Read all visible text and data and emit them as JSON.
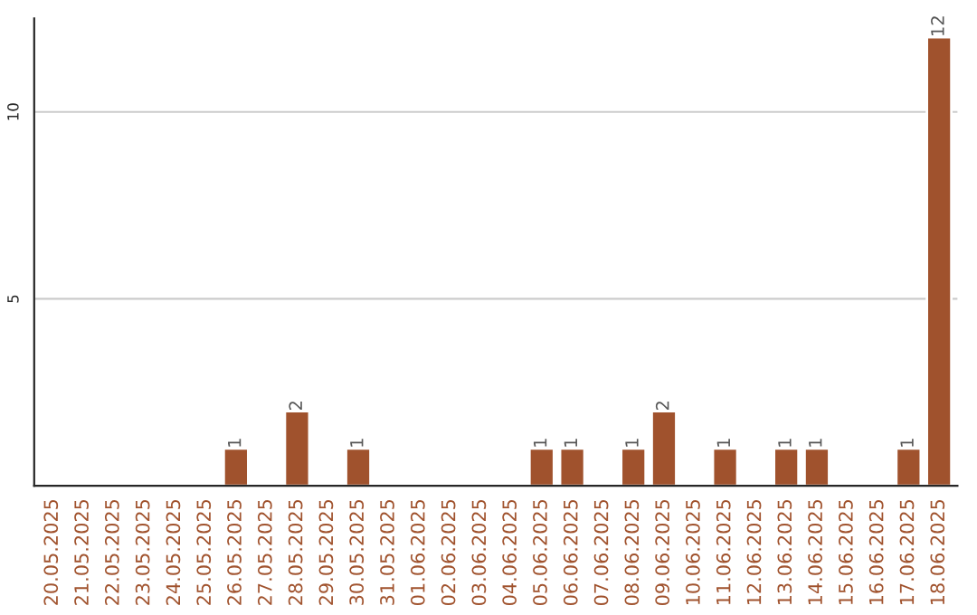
{
  "chart_data": {
    "type": "bar",
    "categories": [
      "20.05.2025",
      "21.05.2025",
      "22.05.2025",
      "23.05.2025",
      "24.05.2025",
      "25.05.2025",
      "26.05.2025",
      "27.05.2025",
      "28.05.2025",
      "29.05.2025",
      "30.05.2025",
      "31.05.2025",
      "01.06.2025",
      "02.06.2025",
      "03.06.2025",
      "04.06.2025",
      "05.06.2025",
      "06.06.2025",
      "07.06.2025",
      "08.06.2025",
      "09.06.2025",
      "10.06.2025",
      "11.06.2025",
      "12.06.2025",
      "13.06.2025",
      "14.06.2025",
      "15.06.2025",
      "16.06.2025",
      "17.06.2025",
      "18.06.2025"
    ],
    "values": [
      0,
      0,
      0,
      0,
      0,
      0,
      1,
      0,
      2,
      0,
      1,
      0,
      0,
      0,
      0,
      0,
      1,
      1,
      0,
      1,
      2,
      0,
      1,
      0,
      1,
      1,
      0,
      0,
      1,
      12
    ],
    "value_labels": [
      null,
      null,
      null,
      null,
      null,
      null,
      "1",
      null,
      "2",
      null,
      "1",
      null,
      null,
      null,
      null,
      null,
      "1",
      "1",
      null,
      "1",
      "2",
      null,
      "1",
      null,
      "1",
      "1",
      null,
      null,
      "1",
      "12"
    ],
    "color": "#a0522d",
    "ylim": [
      0,
      12.5
    ],
    "yticks": [
      5,
      10
    ],
    "grid": "y"
  }
}
